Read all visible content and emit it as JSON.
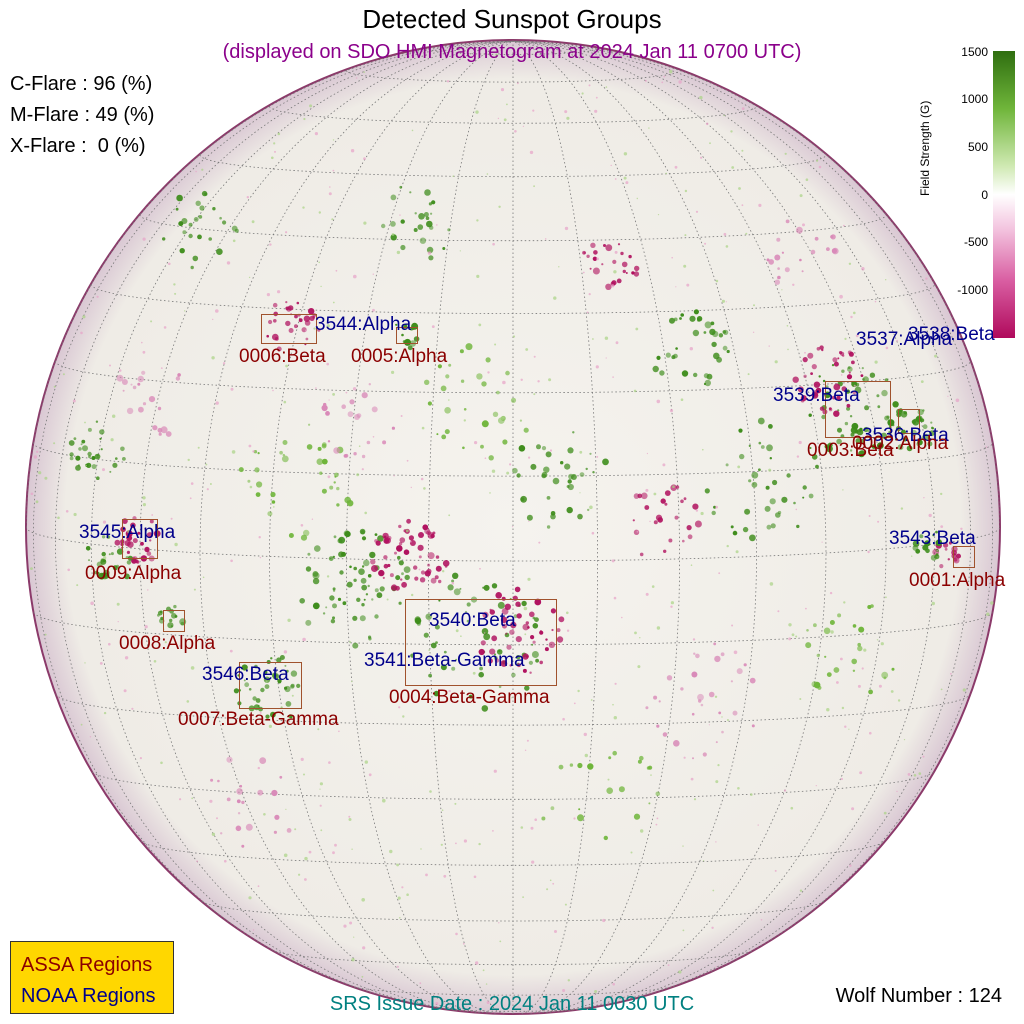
{
  "title": "Detected Sunspot Groups",
  "subtitle": "(displayed on SDO HMI Magnetogram at 2024 Jan 11 0700 UTC)",
  "flare_probabilities": [
    {
      "text": "C-Flare : 96 (%)"
    },
    {
      "text": "M-Flare : 49 (%)"
    },
    {
      "text": "X-Flare :  0 (%)"
    }
  ],
  "noaa_labels": [
    {
      "text": "3544:Alpha"
    },
    {
      "text": "3537:Alpha"
    },
    {
      "text": "3538:Beta"
    },
    {
      "text": "3539:Beta"
    },
    {
      "text": "3536:Beta"
    },
    {
      "text": "3545:Alpha"
    },
    {
      "text": "3543:Beta"
    },
    {
      "text": "3540:Beta"
    },
    {
      "text": "3541:Beta-Gamma"
    },
    {
      "text": "3546:Beta"
    }
  ],
  "assa_labels": [
    {
      "text": "0006:Beta"
    },
    {
      "text": "0005:Alpha"
    },
    {
      "text": "0003:Beta"
    },
    {
      "text": "0002:Alpha"
    },
    {
      "text": "0009:Alpha"
    },
    {
      "text": "0001:Alpha"
    },
    {
      "text": "0008:Alpha"
    },
    {
      "text": "0007:Beta-Gamma"
    },
    {
      "text": "0004:Beta-Gamma"
    }
  ],
  "colorbar": {
    "title": "Field Strength (G)",
    "ticks": [
      "1500",
      "1000",
      "500",
      "0",
      "-500",
      "-1000"
    ]
  },
  "legend": {
    "assa": "ASSA Regions",
    "noaa": "NOAA Regions",
    "assa_color": "#8b0000",
    "noaa_color": "#00008b",
    "background": "#ffd700"
  },
  "footer": "SRS Issue Date : 2024 Jan 11 0030 UTC",
  "wolf": "Wolf Number : 124"
}
